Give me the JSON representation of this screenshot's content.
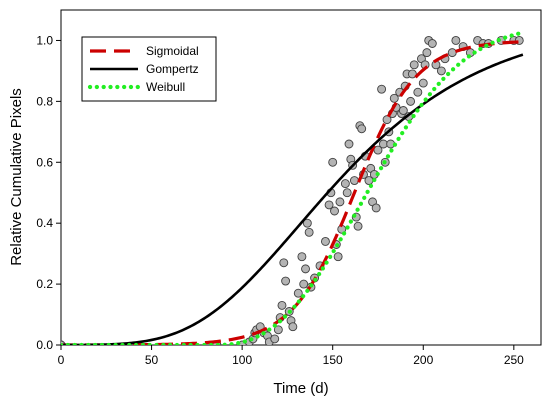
{
  "chart_data": {
    "type": "scatter",
    "title": "",
    "xlabel": "Time (d)",
    "ylabel": "Relative Cumulative Pixels",
    "xlim": [
      0,
      265
    ],
    "ylim": [
      0,
      1.1
    ],
    "x_ticks": [
      0,
      50,
      100,
      150,
      200,
      250
    ],
    "y_ticks": [
      0.0,
      0.2,
      0.4,
      0.6,
      0.8,
      1.0
    ],
    "x_tick_labels": [
      "0",
      "50",
      "100",
      "150",
      "200",
      "250"
    ],
    "y_tick_labels": [
      "0.0",
      "0.2",
      "0.4",
      "0.6",
      "0.8",
      "1.0"
    ],
    "grid": false,
    "legend_position": "top-left",
    "observed_points": {
      "marker": "circle",
      "fill": "#b4b4b4",
      "stroke": "#404040",
      "points": [
        [
          0,
          0
        ],
        [
          0,
          0
        ],
        [
          0,
          0
        ],
        [
          86,
          0
        ],
        [
          86,
          0
        ],
        [
          100,
          0
        ],
        [
          104,
          0.01
        ],
        [
          106,
          0.02
        ],
        [
          107,
          0.04
        ],
        [
          108,
          0.05
        ],
        [
          110,
          0.06
        ],
        [
          112,
          0.04
        ],
        [
          114,
          0.03
        ],
        [
          115,
          0.01
        ],
        [
          118,
          0.02
        ],
        [
          120,
          0.05
        ],
        [
          121,
          0.09
        ],
        [
          122,
          0.13
        ],
        [
          123,
          0.27
        ],
        [
          124,
          0.21
        ],
        [
          126,
          0.11
        ],
        [
          127,
          0.08
        ],
        [
          128,
          0.06
        ],
        [
          131,
          0.17
        ],
        [
          133,
          0.29
        ],
        [
          134,
          0.2
        ],
        [
          135,
          0.25
        ],
        [
          136,
          0.4
        ],
        [
          137,
          0.37
        ],
        [
          138,
          0.19
        ],
        [
          140,
          0.22
        ],
        [
          143,
          0.26
        ],
        [
          146,
          0.34
        ],
        [
          148,
          0.46
        ],
        [
          149,
          0.5
        ],
        [
          150,
          0.6
        ],
        [
          151,
          0.44
        ],
        [
          152,
          0.33
        ],
        [
          153,
          0.29
        ],
        [
          154,
          0.47
        ],
        [
          155,
          0.38
        ],
        [
          157,
          0.53
        ],
        [
          158,
          0.5
        ],
        [
          159,
          0.66
        ],
        [
          160,
          0.61
        ],
        [
          161,
          0.59
        ],
        [
          162,
          0.54
        ],
        [
          163,
          0.42
        ],
        [
          164,
          0.39
        ],
        [
          165,
          0.72
        ],
        [
          166,
          0.71
        ],
        [
          167,
          0.56
        ],
        [
          168,
          0.62
        ],
        [
          170,
          0.54
        ],
        [
          171,
          0.58
        ],
        [
          172,
          0.47
        ],
        [
          173,
          0.56
        ],
        [
          174,
          0.45
        ],
        [
          175,
          0.64
        ],
        [
          177,
          0.84
        ],
        [
          178,
          0.66
        ],
        [
          179,
          0.6
        ],
        [
          180,
          0.74
        ],
        [
          181,
          0.7
        ],
        [
          182,
          0.66
        ],
        [
          183,
          0.76
        ],
        [
          184,
          0.81
        ],
        [
          185,
          0.78
        ],
        [
          187,
          0.83
        ],
        [
          188,
          0.76
        ],
        [
          189,
          0.77
        ],
        [
          190,
          0.85
        ],
        [
          191,
          0.89
        ],
        [
          192,
          0.75
        ],
        [
          193,
          0.8
        ],
        [
          194,
          0.89
        ],
        [
          195,
          0.92
        ],
        [
          197,
          0.83
        ],
        [
          199,
          0.94
        ],
        [
          200,
          0.86
        ],
        [
          201,
          0.92
        ],
        [
          202,
          0.96
        ],
        [
          203,
          1.0
        ],
        [
          205,
          0.99
        ],
        [
          207,
          0.92
        ],
        [
          210,
          0.9
        ],
        [
          212,
          0.94
        ],
        [
          216,
          0.96
        ],
        [
          218,
          1.0
        ],
        [
          222,
          0.98
        ],
        [
          226,
          0.96
        ],
        [
          230,
          1.0
        ],
        [
          233,
          0.99
        ],
        [
          236,
          0.99
        ],
        [
          243,
          1.0
        ],
        [
          250,
          1.0
        ],
        [
          253,
          1.0
        ]
      ]
    },
    "series": [
      {
        "name": "Sigmoidal",
        "color": "#cc0000",
        "dash": "long-dash",
        "width": 3.2,
        "model": "logistic",
        "params": {
          "a": 1.0,
          "x0": 162,
          "b": 17
        }
      },
      {
        "name": "Gompertz",
        "color": "#000000",
        "dash": "solid",
        "width": 2.6,
        "model": "gompertz",
        "params": {
          "a": 1.07,
          "b": 10,
          "c": 0.0175
        }
      },
      {
        "name": "Weibull",
        "color": "#22ee22",
        "dash": "dotted",
        "width": 4.2,
        "model": "weibull",
        "params": {
          "a": 1.05,
          "x0": 85,
          "lambda": 100,
          "k": 2.5
        }
      }
    ]
  }
}
